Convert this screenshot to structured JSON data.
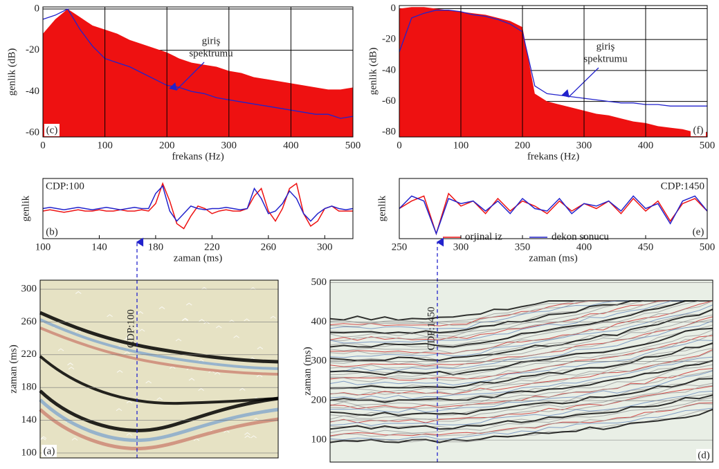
{
  "chart_data": [
    {
      "type": "spectrum",
      "panel": "(c)",
      "ylabel": "genlik (dB)",
      "xlabel": "frekans (Hz)",
      "annotation": [
        "giriş",
        "spektrumu"
      ],
      "annotation_color": "#2222cc",
      "x": [
        0,
        20,
        40,
        60,
        80,
        100,
        120,
        140,
        160,
        180,
        200,
        220,
        240,
        260,
        280,
        300,
        320,
        340,
        360,
        380,
        400,
        420,
        440,
        460,
        480,
        500
      ],
      "series": [
        {
          "style": "area",
          "color": "#ee1111",
          "values": [
            -12,
            -5,
            0,
            -4,
            -8,
            -10,
            -12,
            -15,
            -17,
            -19,
            -21,
            -24,
            -26,
            -27,
            -28,
            -30,
            -31,
            -33,
            -34,
            -35,
            -36,
            -37,
            -38,
            -39,
            -39,
            -38
          ]
        },
        {
          "style": "line",
          "color": "#2222cc",
          "values": [
            -5,
            -3,
            0,
            -10,
            -18,
            -24,
            -26,
            -28,
            -31,
            -34,
            -37,
            -38,
            -40,
            -41,
            -43,
            -44,
            -45,
            -46,
            -47,
            -48,
            -49,
            -50,
            -51,
            -51,
            -53,
            -52
          ]
        }
      ],
      "xlim": [
        0,
        500
      ],
      "xticks": [
        0,
        100,
        200,
        300,
        400,
        500
      ],
      "ylim": [
        -62,
        1
      ],
      "yticks": [
        -60,
        -40,
        -20,
        0
      ],
      "grid": true
    },
    {
      "type": "spectrum",
      "panel": "(f)",
      "ylabel": "genlik (dB)",
      "xlabel": "frekans (Hz)",
      "annotation": [
        "giriş",
        "spektrumu"
      ],
      "annotation_color": "#2222cc",
      "x": [
        0,
        20,
        40,
        60,
        80,
        100,
        120,
        140,
        160,
        180,
        200,
        220,
        240,
        260,
        280,
        300,
        320,
        340,
        360,
        380,
        400,
        420,
        440,
        460,
        480,
        500
      ],
      "series": [
        {
          "style": "area",
          "color": "#ee1111",
          "values": [
            0,
            1,
            1,
            0,
            -1,
            -2,
            -3,
            -4,
            -6,
            -8,
            -12,
            -55,
            -60,
            -62,
            -64,
            -66,
            -68,
            -69,
            -71,
            -73,
            -74,
            -76,
            -77,
            -78,
            -80,
            -80
          ]
        },
        {
          "style": "line",
          "color": "#2222cc",
          "values": [
            -28,
            -6,
            -3,
            -1,
            -1,
            -2,
            -4,
            -5,
            -7,
            -10,
            -15,
            -50,
            -55,
            -56,
            -57,
            -58,
            -59,
            -60,
            -61,
            -61,
            -62,
            -62,
            -63,
            -63,
            -63,
            -63
          ]
        }
      ],
      "xlim": [
        0,
        500
      ],
      "xticks": [
        0,
        100,
        200,
        300,
        400,
        500
      ],
      "ylim": [
        -83,
        2
      ],
      "yticks": [
        -80,
        -60,
        -40,
        -20,
        0
      ],
      "grid": true
    },
    {
      "type": "trace",
      "panel": "(b)",
      "ylabel": "genlik",
      "xlabel": "zaman (ms)",
      "label": "CDP:100",
      "label_color": "#2222cc",
      "x": [
        100,
        105,
        110,
        115,
        120,
        125,
        130,
        135,
        140,
        145,
        150,
        155,
        160,
        165,
        170,
        175,
        180,
        185,
        190,
        195,
        200,
        205,
        210,
        215,
        220,
        225,
        230,
        235,
        240,
        245,
        250,
        255,
        260,
        265,
        270,
        275,
        280,
        285,
        290,
        295,
        300,
        305,
        310,
        315,
        320
      ],
      "series": [
        {
          "color": "#ee1111",
          "values": [
            -0.1,
            -0.05,
            -0.1,
            -0.15,
            -0.1,
            -0.05,
            -0.1,
            -0.1,
            -0.05,
            -0.1,
            -0.1,
            -0.05,
            -0.1,
            -0.1,
            -0.05,
            -0.1,
            0.2,
            1.0,
            0.3,
            -0.6,
            -0.8,
            -0.3,
            0.1,
            0,
            -0.2,
            -0.1,
            -0.05,
            -0.1,
            -0.1,
            0,
            0.5,
            0.8,
            -0.1,
            -0.5,
            0,
            0.8,
            1.0,
            -0.2,
            -0.7,
            -0.5,
            0,
            0.1,
            -0.1,
            -0.1,
            -0.1
          ]
        },
        {
          "color": "#2222cc",
          "values": [
            0,
            0.05,
            0,
            -0.05,
            0,
            0.05,
            0,
            -0.05,
            0,
            0.05,
            0,
            -0.05,
            0,
            0.05,
            0,
            0,
            0.6,
            0.9,
            -0.1,
            -0.5,
            -0.2,
            0.1,
            0,
            -0.05,
            0,
            0,
            0.05,
            0,
            -0.05,
            0,
            0.8,
            0.4,
            -0.2,
            -0.1,
            0.2,
            0.7,
            0.4,
            -0.2,
            -0.5,
            -0.2,
            0,
            0.1,
            0,
            -0.05,
            0
          ]
        }
      ],
      "xlim": [
        100,
        320
      ],
      "xticks": [
        100,
        140,
        180,
        220,
        260,
        300
      ],
      "ylim": [
        -1.2,
        1.2
      ]
    },
    {
      "type": "trace",
      "panel": "(e)",
      "ylabel": "genlik",
      "xlabel": "zaman (ms)",
      "label": "CDP:1450",
      "label_color": "#2222cc",
      "x": [
        250,
        260,
        270,
        280,
        290,
        300,
        310,
        320,
        330,
        340,
        350,
        360,
        370,
        380,
        390,
        400,
        410,
        420,
        430,
        440,
        450,
        460,
        470,
        480,
        490,
        500
      ],
      "series": [
        {
          "name": "orjinal iz",
          "color": "#ee1111",
          "values": [
            0,
            0.3,
            0.5,
            -1.0,
            0.6,
            0.1,
            0.3,
            -0.2,
            0.4,
            -0.1,
            0.3,
            0.1,
            -0.2,
            0.3,
            -0.1,
            0.2,
            0,
            0.3,
            -0.2,
            0.4,
            -0.1,
            0.3,
            -0.5,
            0.2,
            0.4,
            -0.1
          ]
        },
        {
          "name": "dekon sonucu",
          "color": "#2222cc",
          "values": [
            0,
            0.5,
            0.3,
            -1.0,
            0.4,
            0.2,
            0.3,
            -0.1,
            0.3,
            -0.2,
            0.4,
            0,
            -0.1,
            0.4,
            -0.2,
            0.2,
            0.1,
            0.3,
            -0.1,
            0.5,
            0,
            0.2,
            -0.6,
            0.3,
            0.5,
            -0.1
          ]
        }
      ],
      "xlim": [
        250,
        500
      ],
      "xticks": [
        250,
        300,
        350,
        400,
        450,
        500
      ],
      "ylim": [
        -1.2,
        1.2
      ]
    },
    {
      "type": "image",
      "panel": "(a)",
      "ylabel": "zaman (ms)",
      "annotation": "CDP:100",
      "annotation_color": "#2222cc",
      "ylim": [
        94,
        311
      ],
      "yticks": [
        100,
        140,
        180,
        220,
        260,
        300
      ],
      "grid": true
    },
    {
      "type": "image",
      "panel": "(d)",
      "ylabel": "zaman (ms)",
      "annotation": "CDP:1450",
      "annotation_color": "#2222cc",
      "ylim": [
        44,
        506
      ],
      "yticks": [
        100,
        200,
        300,
        400,
        500
      ],
      "grid": true
    }
  ]
}
